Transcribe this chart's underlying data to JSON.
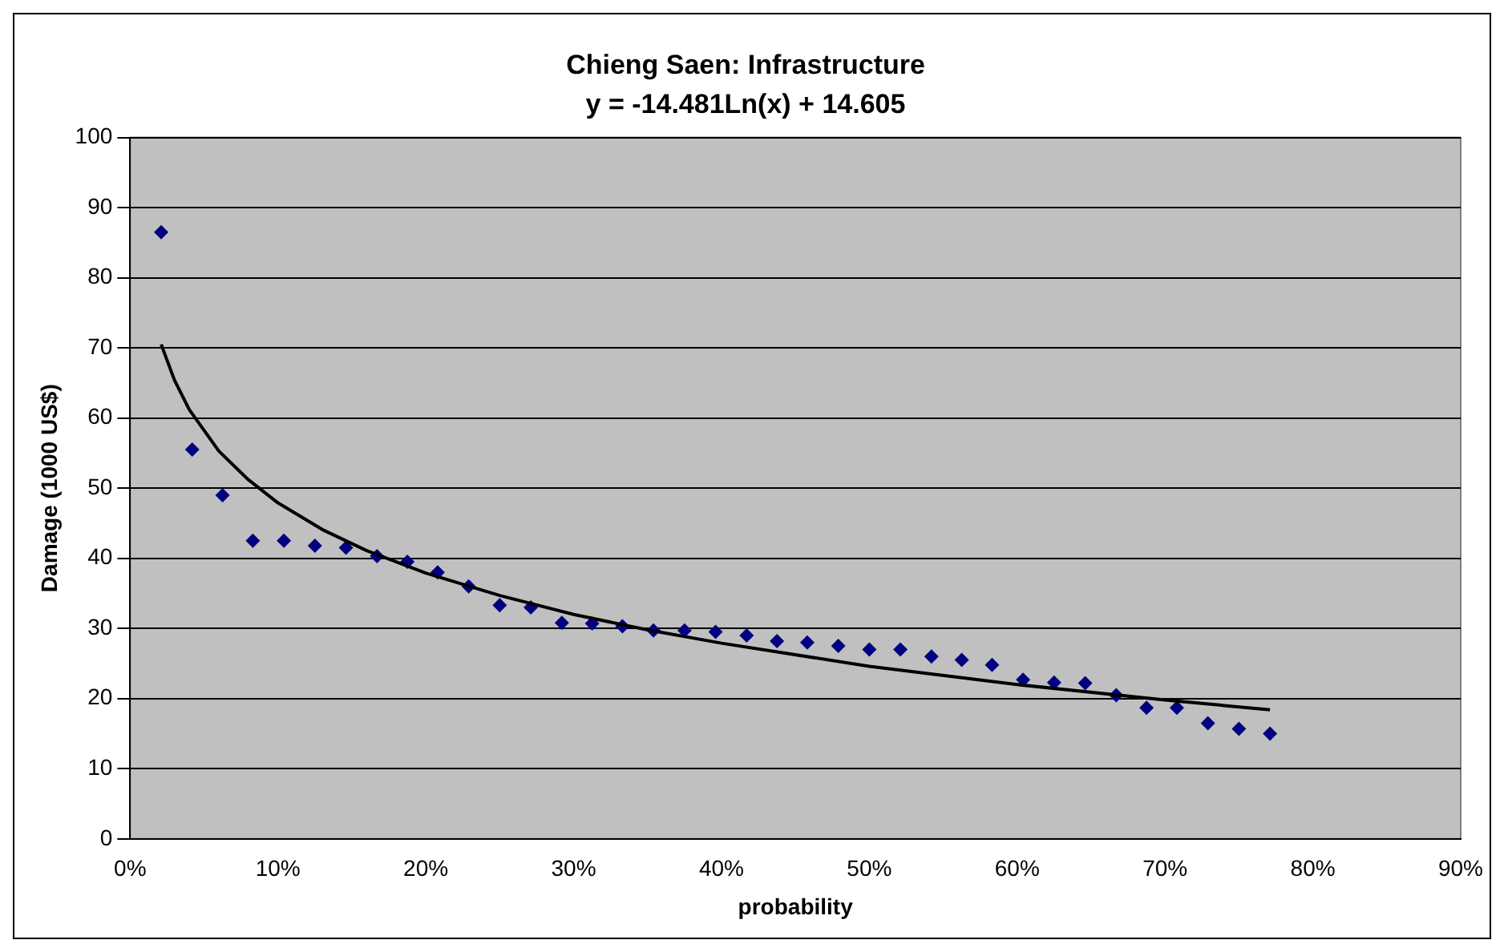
{
  "chart_data": {
    "type": "scatter",
    "title": "Chieng Saen: Infrastructure",
    "subtitle": "y = -14.481Ln(x) + 14.605",
    "xlabel": "probability",
    "ylabel": "Damage (1000 US$)",
    "series": [
      {
        "color": "#000080",
        "marker": "diamond",
        "x": [
          0.021,
          0.042,
          0.0625,
          0.083,
          0.104,
          0.125,
          0.146,
          0.167,
          0.1875,
          0.208,
          0.229,
          0.25,
          0.271,
          0.292,
          0.3125,
          0.333,
          0.354,
          0.375,
          0.396,
          0.417,
          0.4375,
          0.458,
          0.479,
          0.5,
          0.521,
          0.542,
          0.5625,
          0.583,
          0.604,
          0.625,
          0.646,
          0.667,
          0.6875,
          0.708,
          0.729,
          0.75,
          0.771
        ],
        "values": [
          86.5,
          55.5,
          49,
          42.5,
          42.5,
          41.8,
          41.5,
          40.3,
          39.5,
          38,
          36,
          33.3,
          33,
          30.8,
          30.7,
          30.3,
          29.7,
          29.7,
          29.5,
          29,
          28.2,
          28,
          27.5,
          27,
          27,
          26,
          25.5,
          24.8,
          22.7,
          22.3,
          22.2,
          20.5,
          18.7,
          18.7,
          16.5,
          15.7,
          15
        ]
      },
      {
        "type": "line",
        "color": "#000000",
        "marker": "none",
        "line_style": "solid",
        "x": [
          0.021,
          0.03,
          0.04,
          0.06,
          0.08,
          0.1,
          0.13,
          0.16,
          0.2,
          0.25,
          0.3,
          0.35,
          0.4,
          0.5,
          0.6,
          0.7,
          0.771
        ],
        "values": [
          70.5,
          65.4,
          61.2,
          55.3,
          51.2,
          47.9,
          44.1,
          41.1,
          37.9,
          34.7,
          32,
          29.8,
          27.9,
          24.6,
          22,
          19.8,
          18.4
        ]
      }
    ],
    "xlim": [
      0,
      0.9
    ],
    "xticks": [
      {
        "value": 0,
        "label": "0%"
      },
      {
        "value": 0.1,
        "label": "10%"
      },
      {
        "value": 0.2,
        "label": "20%"
      },
      {
        "value": 0.3,
        "label": "30%"
      },
      {
        "value": 0.4,
        "label": "40%"
      },
      {
        "value": 0.5,
        "label": "50%"
      },
      {
        "value": 0.6,
        "label": "60%"
      },
      {
        "value": 0.7,
        "label": "70%"
      },
      {
        "value": 0.8,
        "label": "80%"
      },
      {
        "value": 0.9,
        "label": "90%"
      }
    ],
    "ylim": [
      0,
      100
    ],
    "yticks": [
      0,
      10,
      20,
      30,
      40,
      50,
      60,
      70,
      80,
      90,
      100
    ],
    "grid": "y",
    "legend": false
  }
}
